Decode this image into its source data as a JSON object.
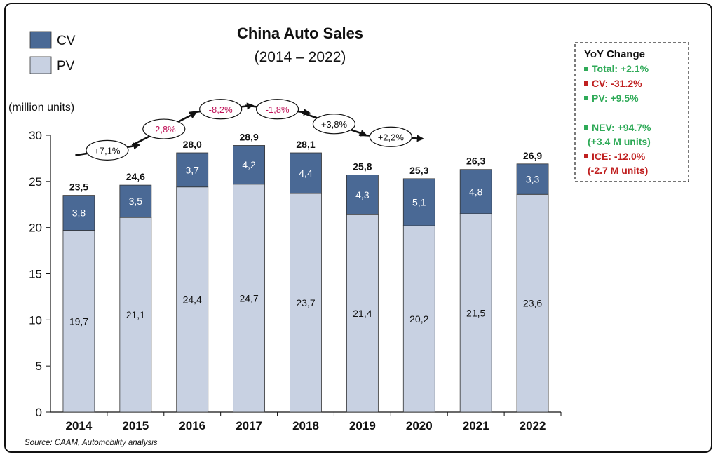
{
  "chart_data": {
    "type": "bar",
    "stacked": true,
    "title": "China Auto Sales",
    "subtitle": "(2014 – 2022)",
    "ylabel": "(million units)",
    "ylim": [
      0,
      30
    ],
    "yticks": [
      "0",
      "5",
      "10",
      "15",
      "20",
      "25",
      "30"
    ],
    "ytick_values": [
      0,
      5,
      10,
      15,
      20,
      25,
      30
    ],
    "grid": false,
    "legend_position": "top-left",
    "categories": [
      "2014",
      "2015",
      "2016",
      "2017",
      "2018",
      "2019",
      "2020",
      "2021",
      "2022"
    ],
    "series": [
      {
        "name": "PV",
        "color": "#c8d1e2",
        "values": [
          19.7,
          21.1,
          24.4,
          24.7,
          23.7,
          21.4,
          20.2,
          21.5,
          23.6
        ],
        "labels": [
          "19,7",
          "21,1",
          "24,4",
          "24,7",
          "23,7",
          "21,4",
          "20,2",
          "21,5",
          "23,6"
        ]
      },
      {
        "name": "CV",
        "color": "#4a6995",
        "values": [
          3.8,
          3.5,
          3.7,
          4.2,
          4.4,
          4.3,
          5.1,
          4.8,
          3.3
        ],
        "labels": [
          "3,8",
          "3,5",
          "3,7",
          "4,2",
          "4,4",
          "4,3",
          "5,1",
          "4,8",
          "3,3"
        ]
      }
    ],
    "totals": [
      23.5,
      24.6,
      28.0,
      28.9,
      28.1,
      25.8,
      25.3,
      26.3,
      26.9
    ],
    "total_labels": [
      "23,5",
      "24,6",
      "28,0",
      "28,9",
      "28,1",
      "25,8",
      "25,3",
      "26,3",
      "26,9"
    ],
    "growth_annotations": [
      {
        "label": "+7,1%",
        "value": 7.1,
        "color": "#111111"
      },
      {
        "label": "-2,8%",
        "value": -2.8,
        "color": "#c0155a"
      },
      {
        "label": "-8,2%",
        "value": -8.2,
        "color": "#c0155a"
      },
      {
        "label": "-1,8%",
        "value": -1.8,
        "color": "#c0155a"
      },
      {
        "label": "+3,8%",
        "value": 3.8,
        "color": "#111111"
      },
      {
        "label": "+2,2%",
        "value": 2.2,
        "color": "#111111"
      }
    ],
    "yoy_box": {
      "title": "YoY Change",
      "items": [
        {
          "text": "Total: +2.1%",
          "color": "#2eaa57"
        },
        {
          "text": "CV: -31.2%",
          "color": "#c02020"
        },
        {
          "text": "PV: +9.5%",
          "color": "#2eaa57"
        },
        {
          "text": "NEV: +94.7%",
          "color": "#2eaa57"
        },
        {
          "text": "(+3.4 M units)",
          "color": "#2eaa57"
        },
        {
          "text": "ICE: -12.0%",
          "color": "#c02020"
        },
        {
          "text": "(-2.7 M units)",
          "color": "#c02020"
        }
      ]
    },
    "source": "Source: CAAM, Automobility analysis"
  }
}
